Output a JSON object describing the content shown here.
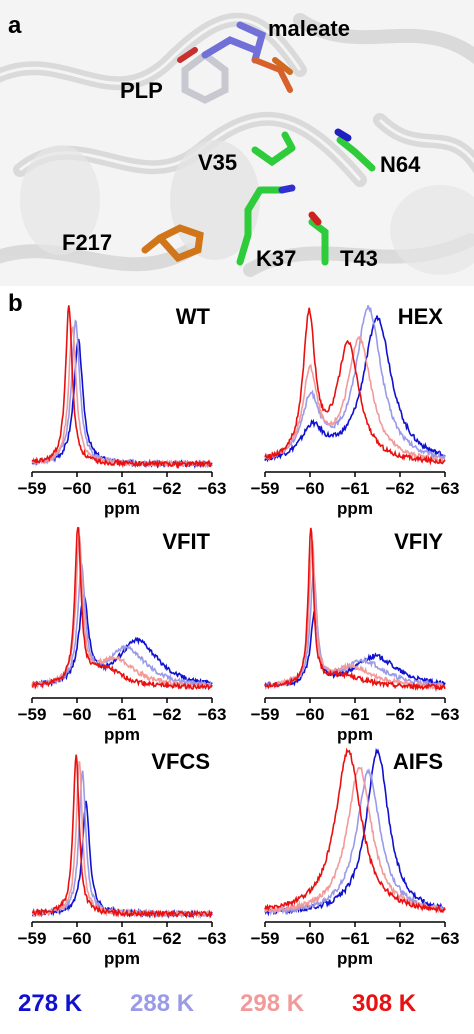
{
  "panel_a": {
    "letter": "a",
    "labels": {
      "maleate": "maleate",
      "plp": "PLP",
      "v35": "V35",
      "n64": "N64",
      "f217": "F217",
      "k37": "K37",
      "t43": "T43"
    }
  },
  "panel_b": {
    "letter": "b"
  },
  "legend": [
    {
      "label": "278 K",
      "color": "#1010d0"
    },
    {
      "label": "288 K",
      "color": "#9a9ae8"
    },
    {
      "label": "298 K",
      "color": "#f29a9a"
    },
    {
      "label": "308 K",
      "color": "#e81010"
    }
  ],
  "chart_data": [
    {
      "type": "line",
      "title": "WT",
      "xlabel": "ppm",
      "xlim": [
        -59,
        -63
      ],
      "xticks": [
        "−59",
        "−60",
        "−61",
        "−62",
        "−63"
      ],
      "series": [
        {
          "name": "278 K",
          "peaks": [
            {
              "center": -60.03,
              "height": 0.78,
              "width": 0.12
            }
          ]
        },
        {
          "name": "288 K",
          "peaks": [
            {
              "center": -59.97,
              "height": 0.9,
              "width": 0.11
            }
          ]
        },
        {
          "name": "298 K",
          "peaks": [
            {
              "center": -59.9,
              "height": 0.88,
              "width": 0.1
            }
          ]
        },
        {
          "name": "308 K",
          "peaks": [
            {
              "center": -59.82,
              "height": 1.0,
              "width": 0.09
            }
          ]
        }
      ]
    },
    {
      "type": "line",
      "title": "HEX",
      "xlabel": "ppm",
      "xlim": [
        -59,
        -63
      ],
      "xticks": [
        "−59",
        "−60",
        "−61",
        "−62",
        "−63"
      ],
      "series": [
        {
          "name": "278 K",
          "peaks": [
            {
              "center": -60.05,
              "height": 0.2,
              "width": 0.3
            },
            {
              "center": -61.5,
              "height": 0.92,
              "width": 0.38
            }
          ]
        },
        {
          "name": "288 K",
          "peaks": [
            {
              "center": -60.02,
              "height": 0.38,
              "width": 0.25
            },
            {
              "center": -61.3,
              "height": 0.98,
              "width": 0.35
            }
          ]
        },
        {
          "name": "298 K",
          "peaks": [
            {
              "center": -60.0,
              "height": 0.55,
              "width": 0.2
            },
            {
              "center": -61.1,
              "height": 0.78,
              "width": 0.33
            }
          ]
        },
        {
          "name": "308 K",
          "peaks": [
            {
              "center": -59.98,
              "height": 0.9,
              "width": 0.16
            },
            {
              "center": -60.85,
              "height": 0.74,
              "width": 0.3
            }
          ]
        }
      ]
    },
    {
      "type": "line",
      "title": "VFIT",
      "xlabel": "ppm",
      "xlim": [
        -59,
        -63
      ],
      "xticks": [
        "−59",
        "−60",
        "−61",
        "−62",
        "−63"
      ],
      "series": [
        {
          "name": "278 K",
          "peaks": [
            {
              "center": -60.15,
              "height": 0.55,
              "width": 0.12
            },
            {
              "center": -61.35,
              "height": 0.3,
              "width": 0.55
            }
          ]
        },
        {
          "name": "288 K",
          "peaks": [
            {
              "center": -60.1,
              "height": 0.72,
              "width": 0.1
            },
            {
              "center": -61.1,
              "height": 0.25,
              "width": 0.55
            }
          ]
        },
        {
          "name": "298 K",
          "peaks": [
            {
              "center": -60.05,
              "height": 0.9,
              "width": 0.09
            },
            {
              "center": -60.85,
              "height": 0.18,
              "width": 0.55
            }
          ]
        },
        {
          "name": "308 K",
          "peaks": [
            {
              "center": -60.02,
              "height": 1.0,
              "width": 0.08
            },
            {
              "center": -60.6,
              "height": 0.12,
              "width": 0.5
            }
          ]
        }
      ]
    },
    {
      "type": "line",
      "title": "VFIY",
      "xlabel": "ppm",
      "xlim": [
        -59,
        -63
      ],
      "xticks": [
        "−59",
        "−60",
        "−61",
        "−62",
        "−63"
      ],
      "series": [
        {
          "name": "278 K",
          "peaks": [
            {
              "center": -60.1,
              "height": 0.45,
              "width": 0.1
            },
            {
              "center": -61.45,
              "height": 0.2,
              "width": 0.6
            }
          ]
        },
        {
          "name": "288 K",
          "peaks": [
            {
              "center": -60.08,
              "height": 0.7,
              "width": 0.09
            },
            {
              "center": -61.2,
              "height": 0.17,
              "width": 0.6
            }
          ]
        },
        {
          "name": "298 K",
          "peaks": [
            {
              "center": -60.05,
              "height": 0.9,
              "width": 0.08
            },
            {
              "center": -60.95,
              "height": 0.13,
              "width": 0.6
            }
          ]
        },
        {
          "name": "308 K",
          "peaks": [
            {
              "center": -60.02,
              "height": 1.0,
              "width": 0.07
            },
            {
              "center": -60.7,
              "height": 0.08,
              "width": 0.6
            }
          ]
        }
      ]
    },
    {
      "type": "line",
      "title": "VFCS",
      "xlabel": "ppm",
      "xlim": [
        -59,
        -63
      ],
      "xticks": [
        "−59",
        "−60",
        "−61",
        "−62",
        "−63"
      ],
      "series": [
        {
          "name": "278 K",
          "peaks": [
            {
              "center": -60.2,
              "height": 0.68,
              "width": 0.1
            }
          ]
        },
        {
          "name": "288 K",
          "peaks": [
            {
              "center": -60.12,
              "height": 0.88,
              "width": 0.09
            }
          ]
        },
        {
          "name": "298 K",
          "peaks": [
            {
              "center": -60.05,
              "height": 0.95,
              "width": 0.08
            }
          ]
        },
        {
          "name": "308 K",
          "peaks": [
            {
              "center": -59.98,
              "height": 0.98,
              "width": 0.08
            }
          ]
        }
      ]
    },
    {
      "type": "line",
      "title": "AIFS",
      "xlabel": "ppm",
      "xlim": [
        -59,
        -63
      ],
      "xticks": [
        "−59",
        "−60",
        "−61",
        "−62",
        "−63"
      ],
      "series": [
        {
          "name": "278 K",
          "peaks": [
            {
              "center": -61.5,
              "height": 1.0,
              "width": 0.3
            }
          ]
        },
        {
          "name": "288 K",
          "peaks": [
            {
              "center": -61.3,
              "height": 0.87,
              "width": 0.32
            }
          ]
        },
        {
          "name": "298 K",
          "peaks": [
            {
              "center": -61.1,
              "height": 0.9,
              "width": 0.33
            }
          ]
        },
        {
          "name": "308 K",
          "peaks": [
            {
              "center": -60.85,
              "height": 1.0,
              "width": 0.35
            }
          ]
        }
      ]
    }
  ]
}
